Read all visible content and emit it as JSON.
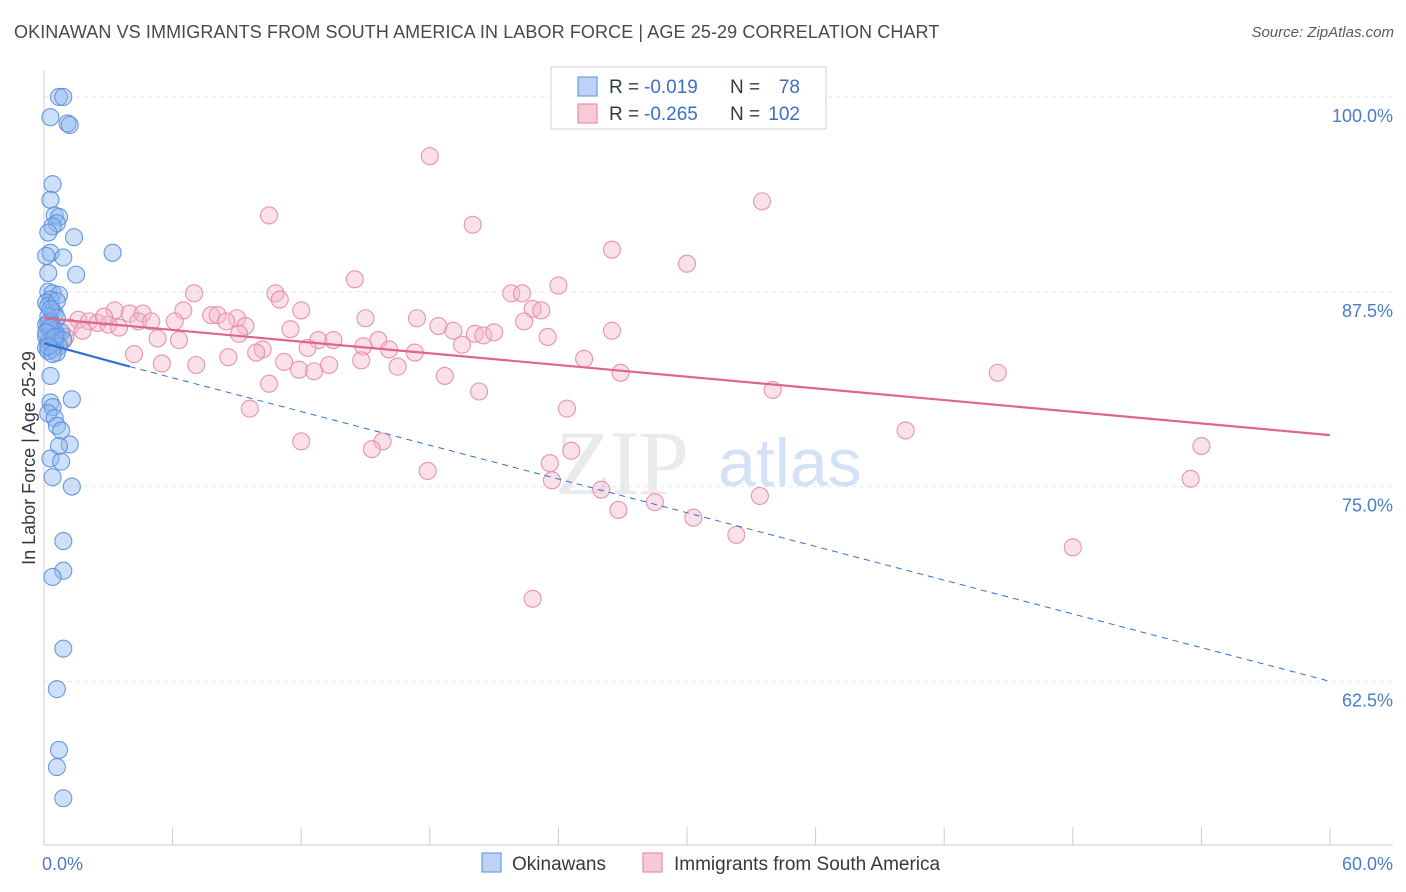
{
  "title": "OKINAWAN VS IMMIGRANTS FROM SOUTH AMERICA IN LABOR FORCE | AGE 25-29 CORRELATION CHART",
  "source": "Source: ZipAtlas.com",
  "watermark": {
    "zip": "ZIP",
    "atlas": "atlas"
  },
  "chart_data": {
    "type": "scatter",
    "title": "OKINAWAN VS IMMIGRANTS FROM SOUTH AMERICA IN LABOR FORCE | AGE 25-29 CORRELATION CHART",
    "xlabel": "",
    "ylabel": "In Labor Force | Age 25-29",
    "xlim": [
      0,
      60
    ],
    "ylim": [
      52,
      102.5
    ],
    "x_tick_labels": [
      "0.0%",
      "60.0%"
    ],
    "y_ticks": [
      62.5,
      75.0,
      87.5,
      100.0
    ],
    "y_tick_labels": [
      "62.5%",
      "75.0%",
      "87.5%",
      "100.0%"
    ],
    "legend_position": "top-center",
    "legend": [
      {
        "r_label": "R =",
        "r_value": "-0.019",
        "n_label": "N =",
        "n_value": "78"
      },
      {
        "r_label": "R =",
        "r_value": "-0.265",
        "n_label": "N =",
        "n_value": "102"
      }
    ],
    "series": [
      {
        "name": "Okinawans",
        "color": "#8ab4f0",
        "stroke": "#5b8fd8",
        "trend": {
          "x0": 0.0,
          "y0": 84.2,
          "x1": 4.0,
          "y1": 82.7,
          "dash_x1": 60.0,
          "dash_y1": 62.5,
          "color": "#2f6fd6"
        },
        "points": [
          [
            0.7,
            100.0
          ],
          [
            0.9,
            100.0
          ],
          [
            0.3,
            98.7
          ],
          [
            1.1,
            98.3
          ],
          [
            1.2,
            98.2
          ],
          [
            0.4,
            94.4
          ],
          [
            0.3,
            93.4
          ],
          [
            0.5,
            92.4
          ],
          [
            0.7,
            92.3
          ],
          [
            0.6,
            91.9
          ],
          [
            0.4,
            91.7
          ],
          [
            0.2,
            91.3
          ],
          [
            1.4,
            91.0
          ],
          [
            3.2,
            90.0
          ],
          [
            0.3,
            90.0
          ],
          [
            0.1,
            89.8
          ],
          [
            0.9,
            89.7
          ],
          [
            0.2,
            88.7
          ],
          [
            1.5,
            88.6
          ],
          [
            0.2,
            87.5
          ],
          [
            0.4,
            87.4
          ],
          [
            0.7,
            87.3
          ],
          [
            0.3,
            87.0
          ],
          [
            0.1,
            86.8
          ],
          [
            0.2,
            86.6
          ],
          [
            0.4,
            86.3
          ],
          [
            0.5,
            86.1
          ],
          [
            0.2,
            85.9
          ],
          [
            0.6,
            85.8
          ],
          [
            0.3,
            85.6
          ],
          [
            0.1,
            85.4
          ],
          [
            0.4,
            85.3
          ],
          [
            0.2,
            85.1
          ],
          [
            0.5,
            85.0
          ],
          [
            0.8,
            84.9
          ],
          [
            0.3,
            84.8
          ],
          [
            0.6,
            84.7
          ],
          [
            0.1,
            84.6
          ],
          [
            0.4,
            84.5
          ],
          [
            0.9,
            84.4
          ],
          [
            0.2,
            84.3
          ],
          [
            0.5,
            84.2
          ],
          [
            0.3,
            84.1
          ],
          [
            0.7,
            84.0
          ],
          [
            0.1,
            83.9
          ],
          [
            0.4,
            83.8
          ],
          [
            0.2,
            83.7
          ],
          [
            0.6,
            83.6
          ],
          [
            0.3,
            82.1
          ],
          [
            1.3,
            80.6
          ],
          [
            0.3,
            80.4
          ],
          [
            0.4,
            80.1
          ],
          [
            0.2,
            79.7
          ],
          [
            0.5,
            79.4
          ],
          [
            0.6,
            78.9
          ],
          [
            0.8,
            78.6
          ],
          [
            1.2,
            77.7
          ],
          [
            0.7,
            77.6
          ],
          [
            0.3,
            76.8
          ],
          [
            0.8,
            76.6
          ],
          [
            0.4,
            75.6
          ],
          [
            1.3,
            75.0
          ],
          [
            0.9,
            71.5
          ],
          [
            0.9,
            69.6
          ],
          [
            0.4,
            69.2
          ],
          [
            0.9,
            64.6
          ],
          [
            0.6,
            62.0
          ],
          [
            0.7,
            58.1
          ],
          [
            0.6,
            57.0
          ],
          [
            0.9,
            55.0
          ],
          [
            0.2,
            85.5
          ],
          [
            0.3,
            85.2
          ],
          [
            0.1,
            84.9
          ],
          [
            0.5,
            84.6
          ],
          [
            0.2,
            84.0
          ],
          [
            0.4,
            83.5
          ],
          [
            0.6,
            86.9
          ],
          [
            0.3,
            86.4
          ]
        ]
      },
      {
        "name": "Immigrants from South America",
        "color": "#f4b6c8",
        "stroke": "#e68aa6",
        "trend": {
          "x0": 0.0,
          "y0": 85.8,
          "x1": 60.0,
          "y1": 78.3,
          "color": "#e0658e"
        },
        "points": [
          [
            27.0,
            100.0
          ],
          [
            33.0,
            100.0
          ],
          [
            18.0,
            96.2
          ],
          [
            10.5,
            92.4
          ],
          [
            20.0,
            91.8
          ],
          [
            33.5,
            93.3
          ],
          [
            26.5,
            90.2
          ],
          [
            30.0,
            89.3
          ],
          [
            14.5,
            88.3
          ],
          [
            24.0,
            87.9
          ],
          [
            7.0,
            87.4
          ],
          [
            10.8,
            87.4
          ],
          [
            21.8,
            87.4
          ],
          [
            22.3,
            87.4
          ],
          [
            11.0,
            87.0
          ],
          [
            22.8,
            86.4
          ],
          [
            3.3,
            86.3
          ],
          [
            6.5,
            86.3
          ],
          [
            12.0,
            86.3
          ],
          [
            23.2,
            86.3
          ],
          [
            4.0,
            86.1
          ],
          [
            4.6,
            86.1
          ],
          [
            7.8,
            86.0
          ],
          [
            8.1,
            86.0
          ],
          [
            9.0,
            85.8
          ],
          [
            15.0,
            85.8
          ],
          [
            17.4,
            85.8
          ],
          [
            1.6,
            85.7
          ],
          [
            2.1,
            85.6
          ],
          [
            4.4,
            85.6
          ],
          [
            5.0,
            85.6
          ],
          [
            6.1,
            85.6
          ],
          [
            8.5,
            85.6
          ],
          [
            22.4,
            85.6
          ],
          [
            2.5,
            85.5
          ],
          [
            3.0,
            85.4
          ],
          [
            9.4,
            85.3
          ],
          [
            18.4,
            85.3
          ],
          [
            1.2,
            85.2
          ],
          [
            11.5,
            85.1
          ],
          [
            26.5,
            85.0
          ],
          [
            19.1,
            85.0
          ],
          [
            9.1,
            84.8
          ],
          [
            20.1,
            84.8
          ],
          [
            20.5,
            84.7
          ],
          [
            23.5,
            84.6
          ],
          [
            5.3,
            84.5
          ],
          [
            6.3,
            84.4
          ],
          [
            12.8,
            84.4
          ],
          [
            13.5,
            84.4
          ],
          [
            15.6,
            84.4
          ],
          [
            0.9,
            84.4
          ],
          [
            19.5,
            84.1
          ],
          [
            14.9,
            84.0
          ],
          [
            16.1,
            83.8
          ],
          [
            10.2,
            83.8
          ],
          [
            9.9,
            83.6
          ],
          [
            17.3,
            83.6
          ],
          [
            4.2,
            83.5
          ],
          [
            8.6,
            83.3
          ],
          [
            14.8,
            83.1
          ],
          [
            11.2,
            83.0
          ],
          [
            5.5,
            82.9
          ],
          [
            7.1,
            82.8
          ],
          [
            13.3,
            82.8
          ],
          [
            16.5,
            82.7
          ],
          [
            11.9,
            82.5
          ],
          [
            12.6,
            82.4
          ],
          [
            26.9,
            82.3
          ],
          [
            44.5,
            82.3
          ],
          [
            18.7,
            82.1
          ],
          [
            10.5,
            81.6
          ],
          [
            34.0,
            81.2
          ],
          [
            20.3,
            81.1
          ],
          [
            9.6,
            80.0
          ],
          [
            24.4,
            80.0
          ],
          [
            40.2,
            78.6
          ],
          [
            12.0,
            77.9
          ],
          [
            15.8,
            77.9
          ],
          [
            15.3,
            77.4
          ],
          [
            54.0,
            77.6
          ],
          [
            24.6,
            77.3
          ],
          [
            23.6,
            76.5
          ],
          [
            17.9,
            76.0
          ],
          [
            23.7,
            75.4
          ],
          [
            26.0,
            74.8
          ],
          [
            33.4,
            74.4
          ],
          [
            28.5,
            74.0
          ],
          [
            53.5,
            75.5
          ],
          [
            26.8,
            73.5
          ],
          [
            30.3,
            73.0
          ],
          [
            32.3,
            71.9
          ],
          [
            48.0,
            71.1
          ],
          [
            22.8,
            67.8
          ],
          [
            1.0,
            84.6
          ],
          [
            2.8,
            85.9
          ],
          [
            3.5,
            85.2
          ],
          [
            0.6,
            84.1
          ],
          [
            1.8,
            85.0
          ],
          [
            25.2,
            83.2
          ],
          [
            21.0,
            84.9
          ],
          [
            12.3,
            83.9
          ]
        ]
      }
    ]
  }
}
